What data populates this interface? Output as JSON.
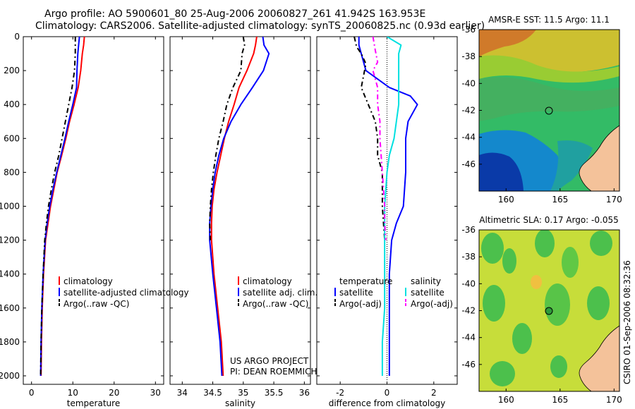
{
  "header": {
    "line1": "Argo profile: AO 5900601_80 25-Aug-2006 20060827_261 41.942S 163.953E",
    "line2": "Climatology: CARS2006. Satellite-adjusted climatology: synTS_20060825.nc (0.93d earlier)"
  },
  "side_caption": "CSIRO 01-Sep-2006 08:32:36",
  "chart_data": [
    {
      "type": "line",
      "xlabel": "temperature",
      "xlim": [
        -2,
        32
      ],
      "xticks": [
        0,
        10,
        20,
        30
      ],
      "ylim": [
        0,
        2050
      ],
      "yticks": [
        0,
        200,
        400,
        600,
        800,
        1000,
        1200,
        1400,
        1600,
        1800,
        2000
      ],
      "y_reversed": true,
      "series": [
        {
          "name": "climatology",
          "color": "#ff0000",
          "dash": "",
          "x": [
            12.8,
            12.6,
            12.3,
            11.9,
            11.3,
            10.3,
            9.2,
            8.3,
            7.3,
            6.2,
            5.4,
            4.6,
            4.0,
            3.4,
            2.9,
            2.6,
            2.4,
            2.3
          ],
          "y": [
            0,
            50,
            100,
            200,
            300,
            400,
            500,
            600,
            700,
            800,
            900,
            1000,
            1100,
            1200,
            1400,
            1600,
            1800,
            2000
          ]
        },
        {
          "name": "satellite-adjusted climatology",
          "color": "#0000ff",
          "dash": "",
          "x": [
            11.6,
            11.4,
            11.2,
            11.0,
            10.9,
            10.0,
            9.0,
            8.1,
            7.1,
            6.1,
            5.2,
            4.4,
            3.8,
            3.3,
            2.8,
            2.5,
            2.3,
            2.2
          ],
          "y": [
            0,
            50,
            100,
            200,
            300,
            400,
            500,
            600,
            700,
            800,
            900,
            1000,
            1100,
            1200,
            1400,
            1600,
            1800,
            2000
          ]
        },
        {
          "name": "Argo(..raw -QC)",
          "color": "#000000",
          "dash": "7,4,2,4",
          "x": [
            10.6,
            10.6,
            10.6,
            10.4,
            9.8,
            9.0,
            8.2,
            7.4,
            6.6,
            5.6,
            4.8,
            4.1,
            3.6,
            3.2,
            2.8,
            2.5,
            2.3,
            2.2
          ],
          "y": [
            0,
            50,
            100,
            200,
            300,
            400,
            500,
            600,
            700,
            800,
            900,
            1000,
            1100,
            1200,
            1400,
            1600,
            1800,
            2000
          ]
        }
      ],
      "legend": {
        "position": "bottom-right",
        "entries": [
          "climatology",
          "satellite-adjusted climatology",
          "Argo(..raw -QC)"
        ]
      }
    },
    {
      "type": "line",
      "xlabel": "salinity",
      "xlim": [
        33.8,
        36.1
      ],
      "xticks": [
        34,
        34.5,
        35,
        35.5,
        36
      ],
      "ylim": [
        0,
        2050
      ],
      "yticks": [
        0,
        200,
        400,
        600,
        800,
        1000,
        1200,
        1400,
        1600,
        1800,
        2000
      ],
      "y_reversed": true,
      "series": [
        {
          "name": "climatology",
          "color": "#ff0000",
          "dash": "",
          "x": [
            35.22,
            35.2,
            35.17,
            35.06,
            34.93,
            34.85,
            34.76,
            34.69,
            34.63,
            34.57,
            34.52,
            34.49,
            34.48,
            34.48,
            34.52,
            34.58,
            34.64,
            34.67
          ],
          "y": [
            0,
            50,
            100,
            200,
            300,
            400,
            500,
            600,
            700,
            800,
            900,
            1000,
            1100,
            1200,
            1400,
            1600,
            1800,
            2000
          ]
        },
        {
          "name": "satellite adj. clim.",
          "color": "#0000ff",
          "dash": "",
          "x": [
            35.32,
            35.34,
            35.42,
            35.33,
            35.15,
            34.96,
            34.8,
            34.68,
            34.6,
            34.54,
            34.5,
            34.47,
            34.45,
            34.45,
            34.5,
            34.56,
            34.62,
            34.65
          ],
          "y": [
            0,
            50,
            100,
            200,
            300,
            400,
            500,
            600,
            700,
            800,
            900,
            1000,
            1100,
            1200,
            1400,
            1600,
            1800,
            2000
          ]
        },
        {
          "name": "Argo(..raw -QC)",
          "color": "#000000",
          "dash": "7,4,2,4",
          "x": [
            35.0,
            35.02,
            34.98,
            34.96,
            34.83,
            34.73,
            34.67,
            34.6,
            34.55,
            34.51,
            34.48,
            34.46,
            34.45,
            34.46
          ],
          "y": [
            0,
            50,
            100,
            200,
            300,
            400,
            500,
            600,
            700,
            800,
            900,
            1000,
            1100,
            1200
          ]
        }
      ],
      "legend": {
        "position": "bottom-right",
        "entries": [
          "climatology",
          "satellite adj. clim.",
          "Argo(..raw -QC)"
        ]
      }
    },
    {
      "type": "line",
      "xlabel": "difference from climatology",
      "xlim": [
        -3,
        3
      ],
      "xticks": [
        -2,
        0,
        2
      ],
      "ylim": [
        0,
        2050
      ],
      "yticks": [
        0,
        200,
        400,
        600,
        800,
        1000,
        1200,
        1400,
        1600,
        1800,
        2000
      ],
      "y_reversed": true,
      "zero_line": true,
      "series": [
        {
          "name": "temperature satellite",
          "color": "#0000ff",
          "dash": "",
          "x": [
            -1.2,
            -1.2,
            -1.1,
            -0.9,
            0.1,
            1.0,
            1.3,
            0.9,
            0.8,
            0.8,
            0.8,
            0.7,
            0.4,
            0.2,
            0.1,
            0.1,
            0.1,
            0.1
          ],
          "y": [
            0,
            50,
            100,
            200,
            300,
            350,
            400,
            500,
            600,
            700,
            800,
            1000,
            1100,
            1200,
            1400,
            1600,
            1800,
            2000
          ]
        },
        {
          "name": "temperature Argo(-adj)",
          "color": "#000000",
          "dash": "7,4,2,4",
          "x": [
            -1.4,
            -1.3,
            -1.1,
            -0.9,
            -1.0,
            -1.1,
            -0.8,
            -0.5,
            -0.4,
            -0.4,
            -0.2,
            -0.2,
            -0.1
          ],
          "y": [
            0,
            60,
            100,
            160,
            230,
            300,
            400,
            500,
            600,
            700,
            800,
            1000,
            1200
          ]
        },
        {
          "name": "salinity satellite",
          "color": "#00e0e0",
          "dash": "",
          "x": [
            0.0,
            0.6,
            0.5,
            0.5,
            0.5,
            0.5,
            0.4,
            0.3,
            0.1,
            0.0,
            -0.1,
            -0.1,
            -0.1,
            -0.1,
            -0.2,
            -0.2
          ],
          "y": [
            0,
            50,
            100,
            200,
            300,
            400,
            500,
            600,
            700,
            800,
            1000,
            1200,
            1400,
            1600,
            1800,
            2000
          ]
        },
        {
          "name": "salinity Argo(-adj)",
          "color": "#ff00ff",
          "dash": "7,4,2,4",
          "x": [
            -0.6,
            -0.5,
            -0.4,
            -0.6,
            -0.4,
            -0.4,
            -0.3,
            -0.3,
            -0.2,
            -0.1,
            -0.1,
            -0.05
          ],
          "y": [
            0,
            80,
            150,
            200,
            300,
            400,
            500,
            600,
            800,
            1000,
            1100,
            1200
          ]
        }
      ],
      "legend": {
        "position": "bottom",
        "temperature": {
          "title": "temperature",
          "entries": [
            "satellite",
            "Argo(-adj)"
          ]
        },
        "salinity": {
          "title": "salinity",
          "entries": [
            "satellite",
            "Argo(-adj)"
          ]
        }
      }
    },
    {
      "type": "heatmap",
      "title": "AMSR-E SST: 11.5 Argo: 11.1",
      "xlim": [
        157.5,
        170.5
      ],
      "ylim": [
        -48,
        -36
      ],
      "xticks": [
        160,
        165,
        170
      ],
      "yticks": [
        -36,
        -38,
        -40,
        -42,
        -44,
        -46
      ],
      "marker": {
        "lon": 163.95,
        "lat": -41.94,
        "style": "open circle"
      }
    },
    {
      "type": "heatmap",
      "title": "Altimetric SLA: 0.17 Argo: -0.055",
      "xlim": [
        157.5,
        170.5
      ],
      "ylim": [
        -48,
        -36
      ],
      "xticks": [
        160,
        165,
        170
      ],
      "yticks": [
        -36,
        -38,
        -40,
        -42,
        -44,
        -46
      ],
      "marker": {
        "lon": 163.95,
        "lat": -41.94,
        "style": "filled circle"
      }
    }
  ],
  "annotations": {
    "project": "US ARGO PROJECT",
    "pi": "PI: DEAN ROEMMICH"
  }
}
